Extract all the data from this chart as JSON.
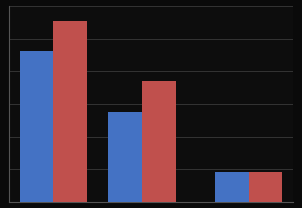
{
  "series1_values": [
    5,
    3,
    1
  ],
  "series2_values": [
    6,
    4,
    1
  ],
  "bar_color1": "#4472C4",
  "bar_color2": "#C0504D",
  "ylim": [
    0,
    6.5
  ],
  "background_color": "#0a0a0a",
  "plot_bg_color": "#0d0d0d",
  "grid_color": "#3a3a3a",
  "bar_width": 0.38,
  "group_positions": [
    0.5,
    1.5,
    2.7
  ]
}
